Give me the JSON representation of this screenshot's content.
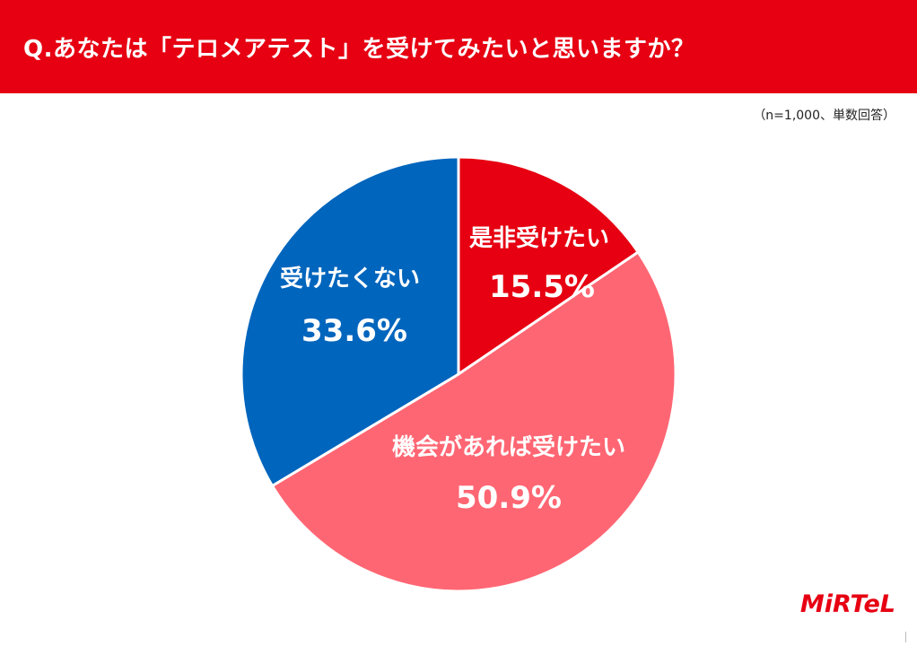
{
  "header": {
    "title": "Q.あなたは「テロメアテスト」を受けてみたいと思いますか？",
    "background": "#e60012"
  },
  "sample_note": "（n=1,000、単数回答）",
  "logo_text": "MiRTeL",
  "chart_data": {
    "type": "pie",
    "title": "Q.あなたは「テロメアテスト」を受けてみたいと思いますか？",
    "start_angle": "12 o'clock",
    "direction": "clockwise",
    "slices": [
      {
        "label": "是非受けたい",
        "value": 15.5,
        "value_label": "15.5%",
        "color": "#e60012"
      },
      {
        "label": "機会があれば受けたい",
        "value": 50.9,
        "value_label": "50.9%",
        "color": "#ff6673"
      },
      {
        "label": "受けたくない",
        "value": 33.6,
        "value_label": "33.6%",
        "color": "#0065bd"
      }
    ]
  }
}
